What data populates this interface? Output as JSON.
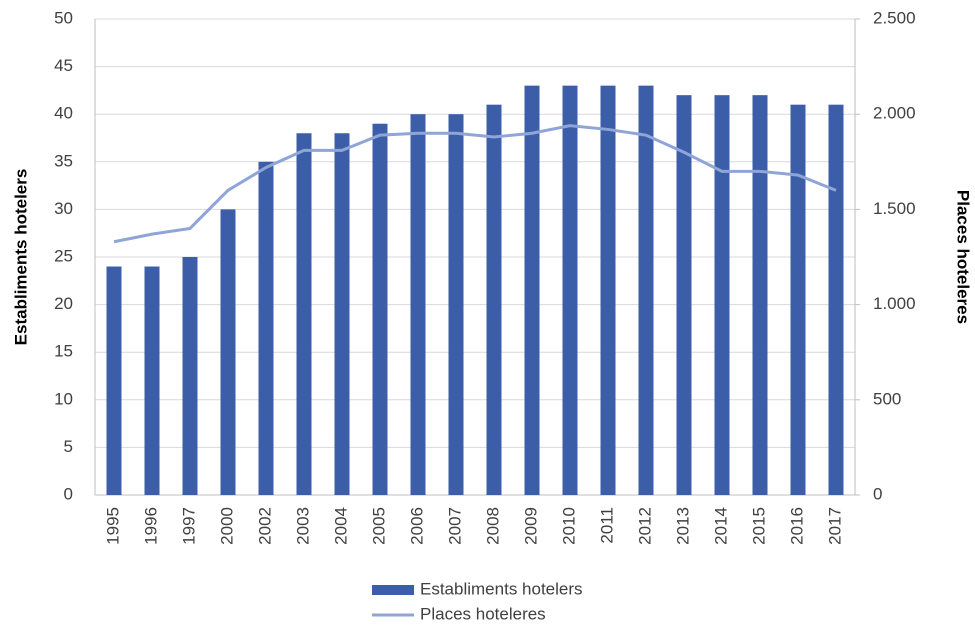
{
  "chart_data": {
    "type": "bar",
    "categories": [
      "1995",
      "1996",
      "1997",
      "2000",
      "2002",
      "2003",
      "2004",
      "2005",
      "2006",
      "2007",
      "2008",
      "2009",
      "2010",
      "2011",
      "2012",
      "2013",
      "2014",
      "2015",
      "2016",
      "2017"
    ],
    "series": [
      {
        "name": "Establiments hotelers",
        "type": "bar",
        "color": "#3c5ea8",
        "values": [
          24,
          24,
          25,
          30,
          35,
          38,
          38,
          39,
          40,
          40,
          41,
          43,
          43,
          43,
          43,
          42,
          42,
          42,
          41,
          41
        ]
      },
      {
        "name": "Places hoteleres",
        "type": "line",
        "axis": "y2",
        "color": "#8fa5d8",
        "values": [
          1330,
          1370,
          1400,
          1600,
          1720,
          1810,
          1810,
          1890,
          1900,
          1900,
          1880,
          1900,
          1940,
          1920,
          1890,
          1800,
          1700,
          1700,
          1680,
          1600
        ]
      }
    ],
    "y_label": "Establiments hotelers",
    "y2_label": "Places hoteleres",
    "ylim": [
      0,
      50
    ],
    "yticks": [
      0,
      5,
      10,
      15,
      20,
      25,
      30,
      35,
      40,
      45,
      50
    ],
    "y2lim": [
      0,
      2500
    ],
    "y2ticks": [
      0,
      500,
      {
        "value": 1000,
        "label": "1.000"
      },
      {
        "value": 1500,
        "label": "1.500"
      },
      {
        "value": 2000,
        "label": "2.000"
      },
      {
        "value": 2500,
        "label": "2.500"
      }
    ],
    "grid": true,
    "legend": "bottom"
  }
}
